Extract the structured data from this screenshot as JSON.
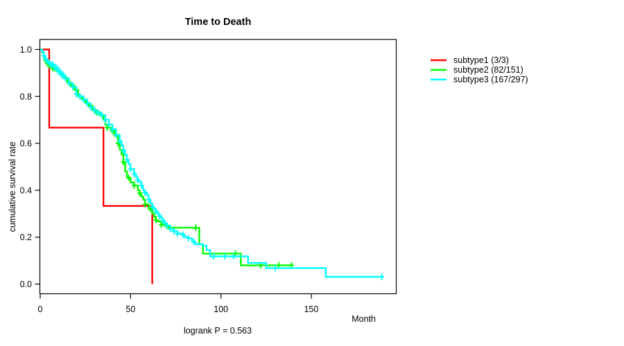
{
  "chart_data": {
    "type": "line",
    "variant": "kaplan-meier-step",
    "title": "Time to Death",
    "xlabel": "Month",
    "ylabel": "cumulative survival rate",
    "annotation": "logrank P = 0.563",
    "xlim": [
      0,
      197
    ],
    "ylim": [
      0,
      1
    ],
    "grid": false,
    "legend_position": "right-outside",
    "x_ticks": [
      {
        "v": 0,
        "label": "0"
      },
      {
        "v": 50,
        "label": "50"
      },
      {
        "v": 100,
        "label": "100"
      },
      {
        "v": 150,
        "label": "150"
      }
    ],
    "y_ticks": [
      {
        "v": 0.0,
        "label": "0.0"
      },
      {
        "v": 0.2,
        "label": "0.2"
      },
      {
        "v": 0.4,
        "label": "0.4"
      },
      {
        "v": 0.6,
        "label": "0.6"
      },
      {
        "v": 0.8,
        "label": "0.8"
      },
      {
        "v": 1.0,
        "label": "1.0"
      }
    ],
    "series": [
      {
        "name": "subtype1 (3/3)",
        "color": "#ff0000",
        "points": [
          [
            0,
            1.0
          ],
          [
            5,
            0.667
          ],
          [
            35,
            0.333
          ],
          [
            62,
            0.0
          ]
        ],
        "censor_months": []
      },
      {
        "name": "subtype2 (82/151)",
        "color": "#00ff00",
        "points": [
          [
            0,
            1.0
          ],
          [
            1,
            0.987
          ],
          [
            2,
            0.967
          ],
          [
            3,
            0.953
          ],
          [
            4,
            0.94
          ],
          [
            5,
            0.933
          ],
          [
            7,
            0.92
          ],
          [
            9,
            0.907
          ],
          [
            11,
            0.893
          ],
          [
            13,
            0.88
          ],
          [
            15,
            0.86
          ],
          [
            17,
            0.847
          ],
          [
            19,
            0.827
          ],
          [
            21,
            0.8
          ],
          [
            23,
            0.787
          ],
          [
            25,
            0.773
          ],
          [
            27,
            0.76
          ],
          [
            29,
            0.74
          ],
          [
            31,
            0.733
          ],
          [
            33,
            0.72
          ],
          [
            35,
            0.7
          ],
          [
            36,
            0.68
          ],
          [
            37,
            0.667
          ],
          [
            39,
            0.653
          ],
          [
            41,
            0.633
          ],
          [
            43,
            0.6
          ],
          [
            44,
            0.573
          ],
          [
            45,
            0.553
          ],
          [
            46,
            0.52
          ],
          [
            47,
            0.48
          ],
          [
            48,
            0.453
          ],
          [
            50,
            0.433
          ],
          [
            52,
            0.42
          ],
          [
            54,
            0.4
          ],
          [
            55,
            0.387
          ],
          [
            56,
            0.373
          ],
          [
            57,
            0.36
          ],
          [
            58,
            0.34
          ],
          [
            60,
            0.32
          ],
          [
            62,
            0.3
          ],
          [
            63,
            0.287
          ],
          [
            64,
            0.273
          ],
          [
            65,
            0.267
          ],
          [
            67,
            0.253
          ],
          [
            69,
            0.247
          ],
          [
            71,
            0.24
          ],
          [
            88,
            0.17
          ],
          [
            90,
            0.13
          ],
          [
            111,
            0.08
          ],
          [
            139,
            0.08
          ]
        ],
        "censor_months": [
          3,
          4,
          5,
          6,
          7,
          8,
          10,
          12,
          14,
          16,
          18,
          20,
          22,
          24,
          26,
          28,
          31,
          34,
          37,
          40,
          43,
          46,
          49,
          52,
          55,
          58,
          61,
          64,
          67,
          70,
          86,
          108,
          122,
          132,
          139
        ]
      },
      {
        "name": "subtype3 (167/297)",
        "color": "#00ffff",
        "points": [
          [
            0,
            1.0
          ],
          [
            1,
            0.99
          ],
          [
            2,
            0.973
          ],
          [
            3,
            0.96
          ],
          [
            4,
            0.95
          ],
          [
            5,
            0.943
          ],
          [
            6,
            0.936
          ],
          [
            8,
            0.923
          ],
          [
            10,
            0.906
          ],
          [
            12,
            0.89
          ],
          [
            14,
            0.876
          ],
          [
            16,
            0.856
          ],
          [
            18,
            0.84
          ],
          [
            20,
            0.81
          ],
          [
            22,
            0.8
          ],
          [
            24,
            0.786
          ],
          [
            26,
            0.77
          ],
          [
            28,
            0.753
          ],
          [
            30,
            0.74
          ],
          [
            32,
            0.73
          ],
          [
            34,
            0.72
          ],
          [
            36,
            0.7
          ],
          [
            38,
            0.68
          ],
          [
            40,
            0.66
          ],
          [
            42,
            0.636
          ],
          [
            44,
            0.61
          ],
          [
            45,
            0.59
          ],
          [
            46,
            0.57
          ],
          [
            47,
            0.55
          ],
          [
            48,
            0.53
          ],
          [
            49,
            0.51
          ],
          [
            50,
            0.49
          ],
          [
            52,
            0.47
          ],
          [
            53,
            0.455
          ],
          [
            54,
            0.443
          ],
          [
            55,
            0.435
          ],
          [
            56,
            0.42
          ],
          [
            57,
            0.4
          ],
          [
            58,
            0.39
          ],
          [
            59,
            0.38
          ],
          [
            60,
            0.36
          ],
          [
            61,
            0.345
          ],
          [
            62,
            0.33
          ],
          [
            63,
            0.32
          ],
          [
            64,
            0.31
          ],
          [
            65,
            0.3
          ],
          [
            66,
            0.29
          ],
          [
            67,
            0.28
          ],
          [
            68,
            0.27
          ],
          [
            69,
            0.26
          ],
          [
            70,
            0.25
          ],
          [
            72,
            0.235
          ],
          [
            74,
            0.225
          ],
          [
            76,
            0.215
          ],
          [
            78,
            0.21
          ],
          [
            80,
            0.2
          ],
          [
            82,
            0.195
          ],
          [
            84,
            0.18
          ],
          [
            86,
            0.17
          ],
          [
            90,
            0.163
          ],
          [
            92,
            0.145
          ],
          [
            94,
            0.118
          ],
          [
            115,
            0.09
          ],
          [
            125,
            0.068
          ],
          [
            158,
            0.031
          ],
          [
            189,
            0.031
          ]
        ],
        "censor_months": [
          2,
          3,
          4,
          5,
          6,
          7,
          8,
          9,
          10,
          11,
          12,
          13,
          14,
          16,
          18,
          20,
          22,
          24,
          26,
          28,
          30,
          32,
          34,
          36,
          38,
          40,
          42,
          44,
          46,
          48,
          50,
          52,
          54,
          56,
          58,
          60,
          62,
          64,
          66,
          68,
          70,
          72,
          74,
          76,
          79,
          82,
          85,
          96,
          102,
          107,
          130,
          189
        ]
      }
    ]
  }
}
